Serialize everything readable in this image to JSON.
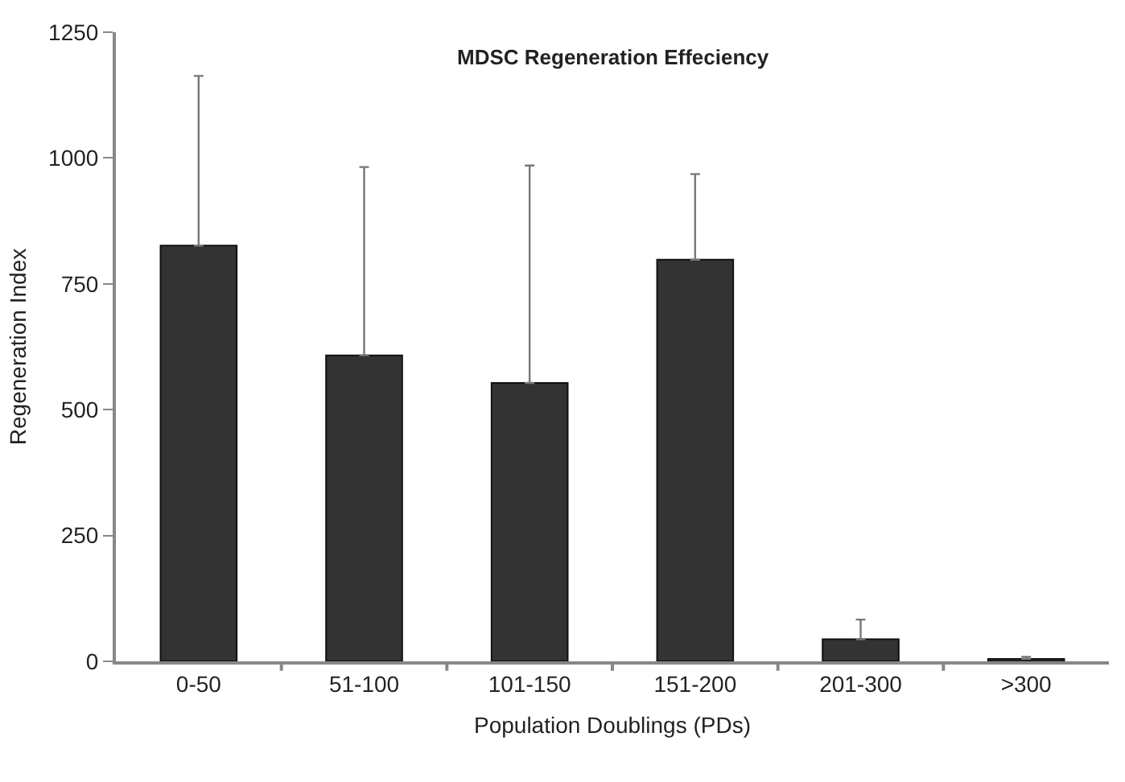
{
  "chart_data": {
    "type": "bar",
    "title": "MDSC Regeneration Effeciency",
    "xlabel": "Population Doublings (PDs)",
    "ylabel": "Regeneration Index",
    "categories": [
      "0-50",
      "51-100",
      "101-150",
      "151-200",
      "201-300",
      ">300"
    ],
    "values": [
      826,
      608,
      553,
      798,
      44,
      5
    ],
    "errors": [
      [
        826,
        1163
      ],
      [
        608,
        982
      ],
      [
        553,
        985
      ],
      [
        798,
        968
      ],
      [
        44,
        83
      ],
      [
        5,
        9
      ]
    ],
    "color": "#333333",
    "ylim": [
      0,
      1250
    ],
    "yticks": [
      0,
      250,
      500,
      750,
      1000,
      1250
    ],
    "grid": false
  }
}
